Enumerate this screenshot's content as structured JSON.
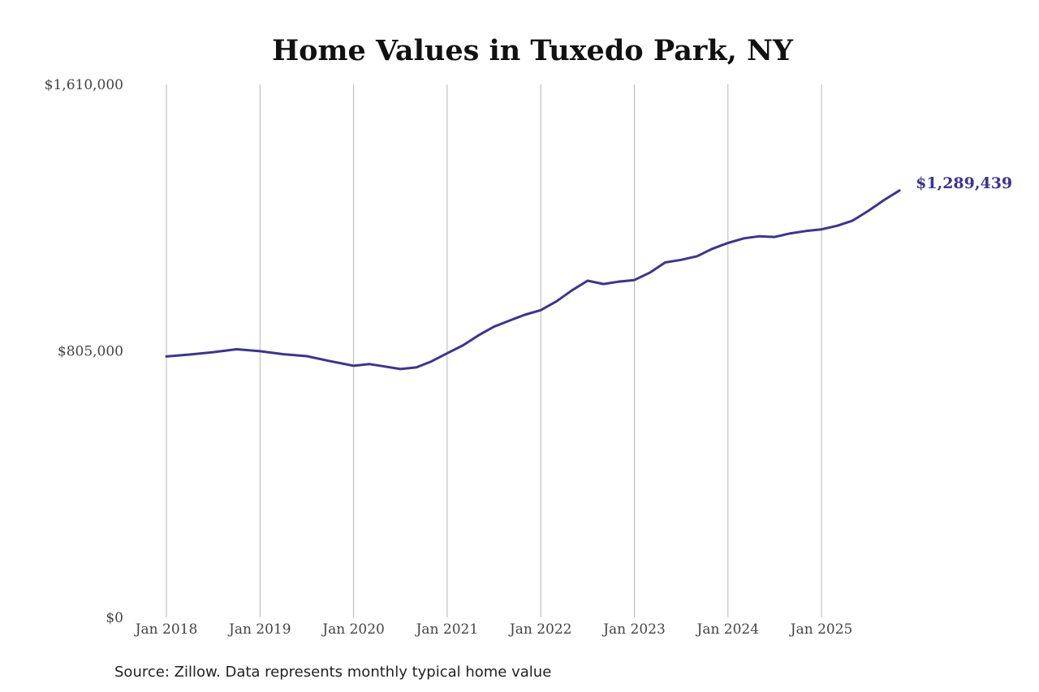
{
  "chart_data": {
    "type": "line",
    "title": "Home Values in Tuxedo Park, NY",
    "source": "Source: Zillow. Data represents monthly typical home value",
    "ylim": [
      0,
      1610000
    ],
    "y_ticks": [
      {
        "value": 0,
        "label": "$0"
      },
      {
        "value": 805000,
        "label": "$805,000"
      },
      {
        "value": 1610000,
        "label": "$1,610,000"
      }
    ],
    "x_ticks": [
      {
        "value": 2018.0,
        "label": "Jan 2018"
      },
      {
        "value": 2019.0,
        "label": "Jan 2019"
      },
      {
        "value": 2020.0,
        "label": "Jan 2020"
      },
      {
        "value": 2021.0,
        "label": "Jan 2021"
      },
      {
        "value": 2022.0,
        "label": "Jan 2022"
      },
      {
        "value": 2023.0,
        "label": "Jan 2023"
      },
      {
        "value": 2024.0,
        "label": "Jan 2024"
      },
      {
        "value": 2025.0,
        "label": "Jan 2025"
      }
    ],
    "xlim": [
      2018.0,
      2025.833
    ],
    "grid": "vertical",
    "line_color": "#3d3394",
    "end_label": "$1,289,439",
    "series": [
      {
        "points": [
          [
            2018.0,
            788000
          ],
          [
            2018.25,
            794000
          ],
          [
            2018.5,
            801000
          ],
          [
            2018.75,
            810000
          ],
          [
            2019.0,
            804000
          ],
          [
            2019.25,
            795000
          ],
          [
            2019.5,
            789000
          ],
          [
            2019.75,
            774000
          ],
          [
            2020.0,
            760000
          ],
          [
            2020.17,
            765000
          ],
          [
            2020.33,
            758000
          ],
          [
            2020.5,
            750000
          ],
          [
            2020.67,
            755000
          ],
          [
            2020.83,
            773000
          ],
          [
            2021.0,
            798000
          ],
          [
            2021.17,
            822000
          ],
          [
            2021.33,
            851000
          ],
          [
            2021.5,
            878000
          ],
          [
            2021.67,
            897000
          ],
          [
            2021.83,
            914000
          ],
          [
            2022.0,
            928000
          ],
          [
            2022.17,
            955000
          ],
          [
            2022.33,
            987000
          ],
          [
            2022.5,
            1017000
          ],
          [
            2022.67,
            1007000
          ],
          [
            2022.83,
            1014000
          ],
          [
            2023.0,
            1019000
          ],
          [
            2023.17,
            1042000
          ],
          [
            2023.33,
            1072000
          ],
          [
            2023.5,
            1080000
          ],
          [
            2023.67,
            1091000
          ],
          [
            2023.83,
            1113000
          ],
          [
            2024.0,
            1131000
          ],
          [
            2024.17,
            1145000
          ],
          [
            2024.33,
            1151000
          ],
          [
            2024.5,
            1149000
          ],
          [
            2024.67,
            1160000
          ],
          [
            2024.83,
            1167000
          ],
          [
            2025.0,
            1172000
          ],
          [
            2025.17,
            1183000
          ],
          [
            2025.33,
            1198000
          ],
          [
            2025.5,
            1228000
          ],
          [
            2025.67,
            1261000
          ],
          [
            2025.833,
            1289439
          ]
        ]
      }
    ]
  }
}
